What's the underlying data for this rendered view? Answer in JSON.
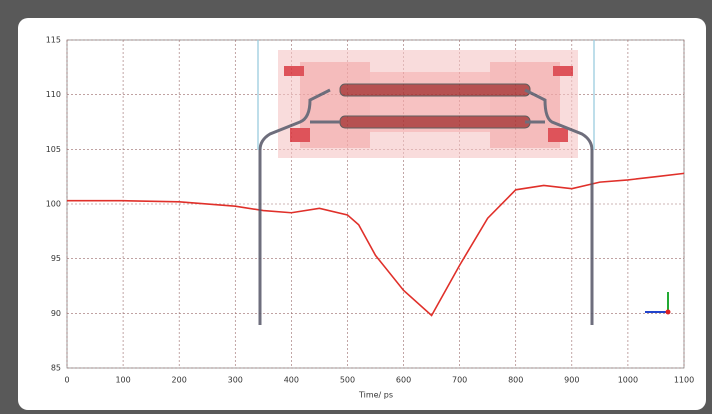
{
  "chart_data": {
    "type": "line",
    "x_label": "Time/ ps",
    "x": [
      0,
      100,
      200,
      300,
      350,
      400,
      450,
      500,
      520,
      550,
      600,
      650,
      700,
      750,
      800,
      850,
      900,
      950,
      1000,
      1050,
      1100
    ],
    "series": [
      {
        "name": "",
        "color": "#e0302a",
        "values": [
          100.3,
          100.3,
          100.2,
          99.8,
          99.4,
          99.2,
          99.6,
          99.0,
          98.1,
          95.3,
          92.1,
          89.8,
          94.4,
          98.7,
          101.3,
          101.7,
          101.4,
          102.0,
          102.2,
          102.5,
          102.8
        ]
      }
    ],
    "xlim": [
      0,
      1100
    ],
    "xticks": [
      0,
      100,
      200,
      300,
      400,
      500,
      600,
      700,
      800,
      900,
      1000,
      1100
    ],
    "ylim": [
      85,
      115
    ],
    "yticks": [
      85,
      90,
      95,
      100,
      105,
      110,
      115
    ],
    "grid": true
  }
}
